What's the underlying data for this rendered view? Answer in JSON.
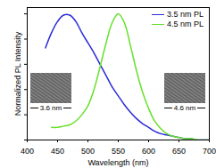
{
  "chart_data": {
    "type": "line",
    "xlabel": "Wavelength (nm)",
    "ylabel": "Normalized PL Intensity",
    "x": [
      430,
      440,
      450,
      460,
      470,
      480,
      490,
      500,
      510,
      520,
      530,
      540,
      550,
      560,
      570,
      580,
      590,
      600,
      610,
      620,
      630,
      640,
      650,
      660,
      670,
      680,
      690,
      700
    ],
    "series": [
      {
        "name": "3.5 nm PL",
        "color": "#2b2bd9",
        "values": [
          0.73,
          0.85,
          0.94,
          0.99,
          0.99,
          0.94,
          0.85,
          0.77,
          0.69,
          0.6,
          0.51,
          0.42,
          0.35,
          0.28,
          0.22,
          0.17,
          0.13,
          0.1,
          0.07,
          0.05,
          0.04,
          0.03,
          0.02,
          0.01,
          0.01,
          0,
          0,
          0
        ]
      },
      {
        "name": "4.5 nm PL",
        "color": "#66e02a",
        "values": [
          null,
          0.1,
          0.1,
          0.11,
          0.12,
          0.15,
          0.2,
          0.27,
          0.4,
          0.58,
          0.77,
          0.93,
          1.0,
          0.93,
          0.75,
          0.55,
          0.38,
          0.25,
          0.15,
          0.09,
          0.05,
          0.03,
          0.02,
          0.01,
          0.01,
          0,
          0,
          0
        ]
      }
    ],
    "xlim": [
      400,
      700
    ],
    "xticks": [
      400,
      450,
      500,
      550,
      600,
      650,
      700
    ],
    "ylim": [
      0,
      1.05
    ],
    "yticks": [
      0,
      0.2,
      0.4,
      0.6,
      0.8,
      1.0
    ],
    "tick_labels": "x",
    "legend": "upper right",
    "annotations": [
      "3.6 nm",
      "4.6 nm"
    ]
  }
}
